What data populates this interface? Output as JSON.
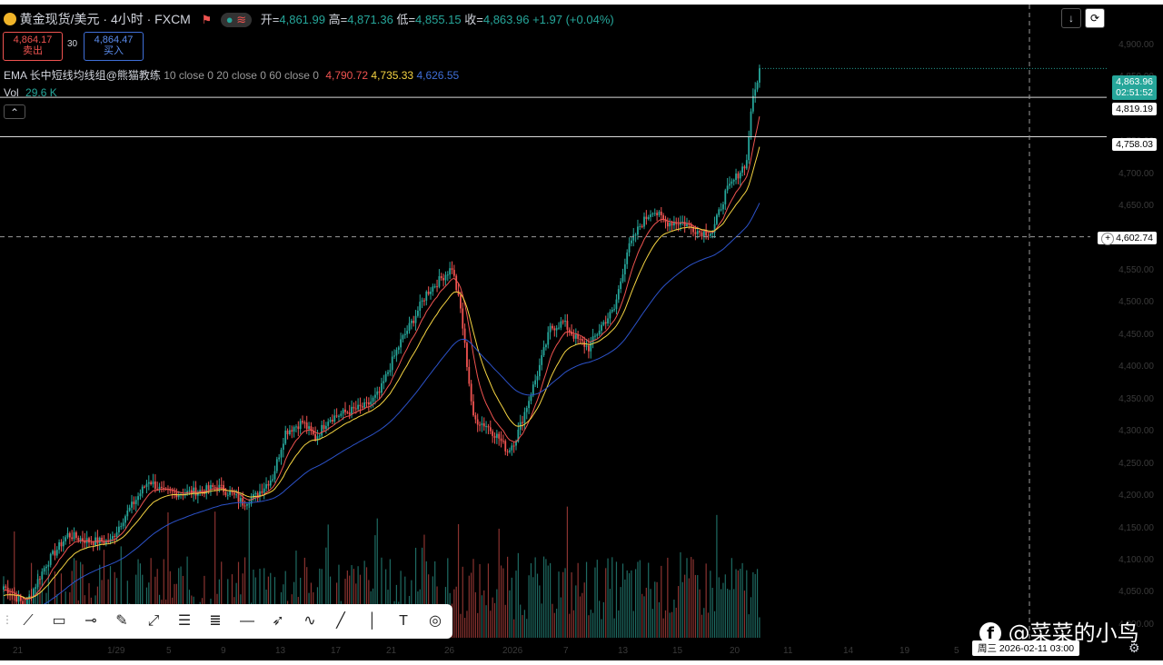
{
  "header": {
    "symbol": "黄金现货/美元 · 4小时 · FXCM",
    "open_label": "开=",
    "open": "4,861.99",
    "high_label": "高=",
    "high": "4,871.36",
    "low_label": "低=",
    "low": "4,855.15",
    "close_label": "收=",
    "close": "4,863.96",
    "change": "+1.97 (+0.04%)"
  },
  "trade": {
    "sell_price": "4,864.17",
    "sell_label": "卖出",
    "spread": "30",
    "buy_price": "4,864.47",
    "buy_label": "买入"
  },
  "indicators": {
    "ema_label": "EMA 长中短线均线组@熊猫教练",
    "ema_params": "10 close 0 20 close 0 60 close 0",
    "ema10": "4,790.72",
    "ema20": "4,735.33",
    "ema60": "4,626.55",
    "vol_label": "Vol",
    "vol_value": "29.6 K",
    "collapse": "⌃"
  },
  "price_labels": {
    "last_price": "4,863.96",
    "countdown": "02:51:52",
    "line1": "4,819.19",
    "line2": "4,758.03",
    "crosshair": "4,602.74"
  },
  "toolbar_right": {
    "down": "↓",
    "sync": "⟳"
  },
  "y_ticks": [
    "4,900.00",
    "4,850.00",
    "4,800.00",
    "4,750.00",
    "4,700.00",
    "4,650.00",
    "4,600.00",
    "4,550.00",
    "4,500.00",
    "4,450.00",
    "4,400.00",
    "4,350.00",
    "4,300.00",
    "4,250.00",
    "4,200.00",
    "4,150.00",
    "4,100.00",
    "4,050.00",
    "4,000.00"
  ],
  "x_ticks": [
    "21",
    "1/29",
    "5",
    "9",
    "13",
    "17",
    "21",
    "26",
    "2026",
    "7",
    "13",
    "15",
    "20",
    "11",
    "14",
    "19",
    "5"
  ],
  "crosshair_date": "周三  2026-02-11  03:00",
  "watermark": "@菜菜的小鸟",
  "draw_tools": [
    "line-tool-icon",
    "rectangle-icon",
    "horizontal-line-icon",
    "brush-icon",
    "path-icon",
    "parallel-channel-icon",
    "fib-retracement-icon",
    "horizontal-ray-icon",
    "arrow-marker-icon",
    "curve-icon",
    "trend-line-icon",
    "vertical-line-icon",
    "text-tool-icon",
    "measure-icon"
  ],
  "colors": {
    "up": "#26a69a",
    "down": "#ef5350",
    "ema10": "#ef5350",
    "ema20": "#f5d442",
    "ema60": "#2c52c9"
  },
  "chart_data": {
    "type": "candlestick",
    "symbol": "XAUUSD",
    "timeframe": "4h",
    "ylim": [
      3990,
      4935
    ],
    "close_anchors": [
      [
        0,
        4060
      ],
      [
        10,
        4030
      ],
      [
        20,
        4095
      ],
      [
        30,
        4140
      ],
      [
        40,
        4130
      ],
      [
        50,
        4130
      ],
      [
        56,
        4165
      ],
      [
        62,
        4195
      ],
      [
        68,
        4225
      ],
      [
        75,
        4205
      ],
      [
        85,
        4205
      ],
      [
        95,
        4210
      ],
      [
        100,
        4215
      ],
      [
        106,
        4205
      ],
      [
        112,
        4190
      ],
      [
        118,
        4200
      ],
      [
        126,
        4230
      ],
      [
        132,
        4300
      ],
      [
        140,
        4315
      ],
      [
        146,
        4290
      ],
      [
        152,
        4320
      ],
      [
        160,
        4330
      ],
      [
        170,
        4340
      ],
      [
        176,
        4360
      ],
      [
        182,
        4410
      ],
      [
        186,
        4440
      ],
      [
        192,
        4475
      ],
      [
        198,
        4515
      ],
      [
        204,
        4535
      ],
      [
        210,
        4555
      ],
      [
        214,
        4490
      ],
      [
        220,
        4320
      ],
      [
        226,
        4310
      ],
      [
        232,
        4290
      ],
      [
        236,
        4270
      ],
      [
        240,
        4290
      ],
      [
        244,
        4330
      ],
      [
        250,
        4390
      ],
      [
        256,
        4460
      ],
      [
        262,
        4470
      ],
      [
        268,
        4445
      ],
      [
        274,
        4430
      ],
      [
        280,
        4465
      ],
      [
        286,
        4490
      ],
      [
        292,
        4580
      ],
      [
        298,
        4620
      ],
      [
        304,
        4645
      ],
      [
        310,
        4625
      ],
      [
        318,
        4625
      ],
      [
        326,
        4610
      ],
      [
        332,
        4610
      ],
      [
        338,
        4670
      ],
      [
        344,
        4700
      ],
      [
        348,
        4720
      ],
      [
        350,
        4800
      ],
      [
        352,
        4830
      ],
      [
        354,
        4863.96
      ]
    ],
    "ema_last": {
      "ema10": 4790.72,
      "ema20": 4735.33,
      "ema60": 4626.55
    },
    "horizontal_lines": [
      4819.19,
      4758.03
    ],
    "crosshair_price": 4602.74,
    "volume_last": "29.6K"
  }
}
